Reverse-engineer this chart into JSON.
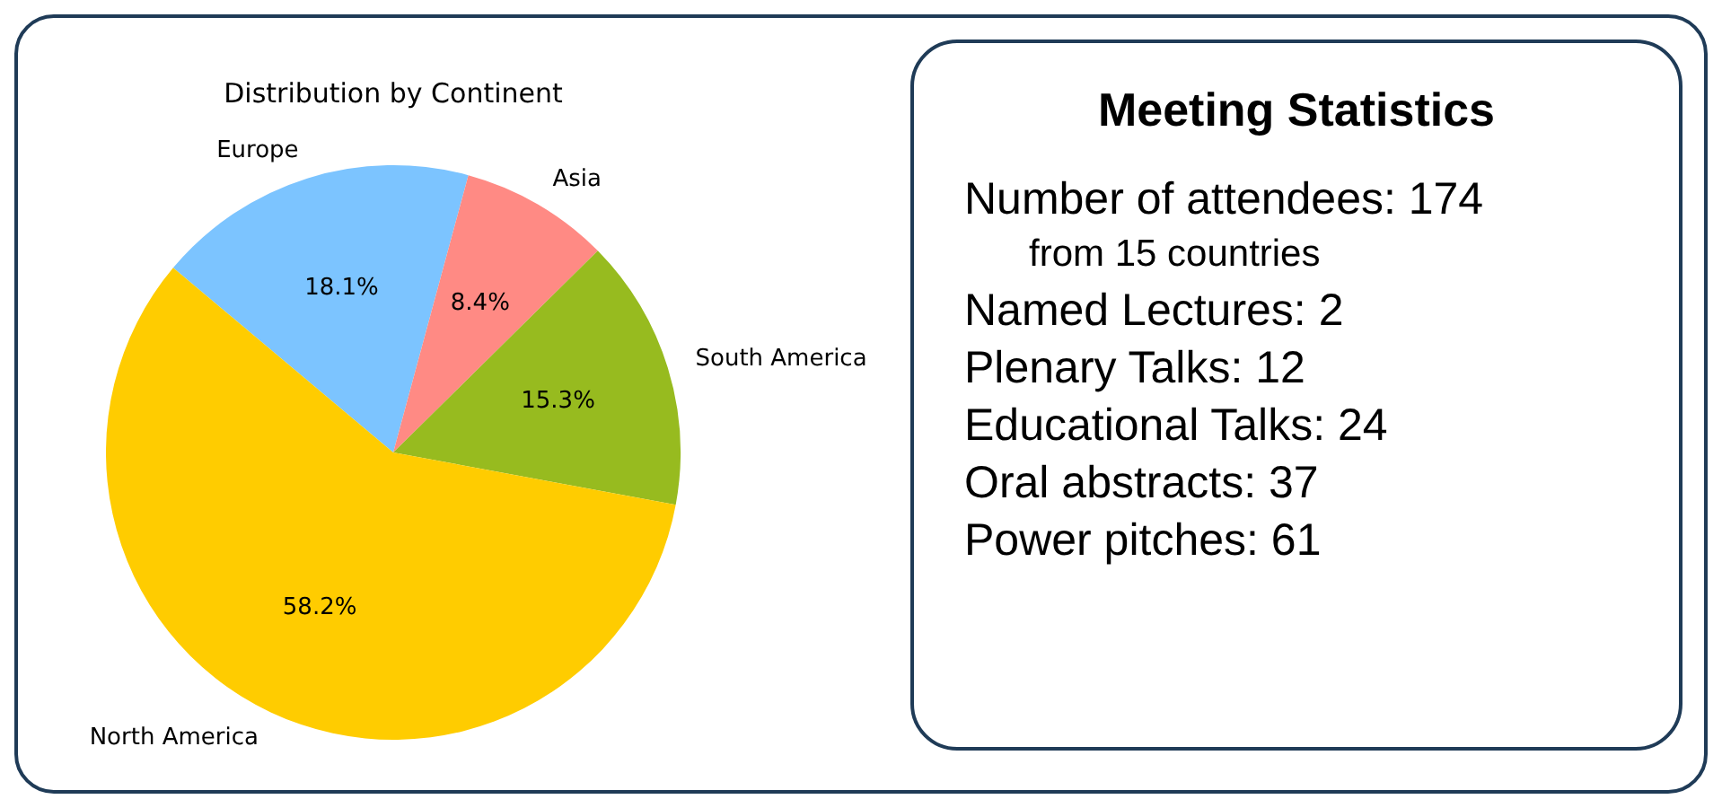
{
  "chart_data": [
    {
      "type": "pie",
      "title": "Distribution by Continent",
      "categories": [
        "Europe",
        "Asia",
        "South America",
        "North America"
      ],
      "values": [
        18.1,
        8.4,
        15.3,
        58.2
      ],
      "value_labels": [
        "18.1%",
        "8.4%",
        "15.3%",
        "58.2%"
      ],
      "colors": [
        "#7cc4ff",
        "#ff8a84",
        "#97bb1f",
        "#ffcc00"
      ]
    },
    {
      "type": "other",
      "title": "Meeting Statistics",
      "annotations": [
        "Number of attendees: 174",
        "from 15 countries",
        "Named Lectures: 2",
        "Plenary Talks: 12",
        "Educational Talks: 24",
        "Oral abstracts: 37",
        "Power pitches:  61"
      ]
    }
  ]
}
